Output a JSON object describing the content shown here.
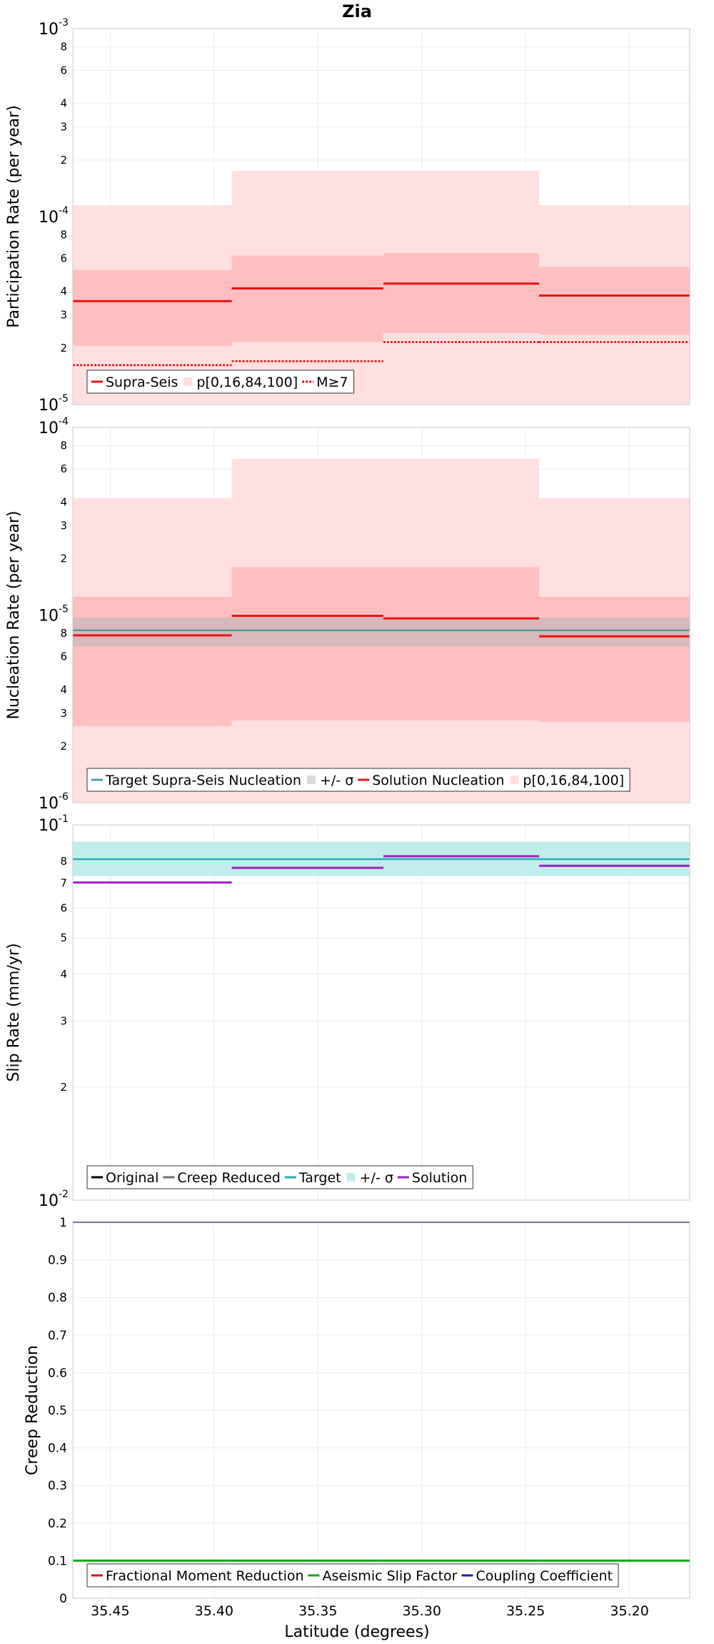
{
  "figure": {
    "title": "Zia",
    "xlabel": "Latitude (degrees)",
    "x_ticks": [
      35.45,
      35.4,
      35.35,
      35.3,
      35.25,
      35.2
    ],
    "x_tick_labels": [
      "35.45",
      "35.40",
      "35.35",
      "35.30",
      "35.25",
      "35.20"
    ],
    "x_range": [
      35.468,
      35.171
    ],
    "x_reversed": true,
    "bins": [
      [
        35.468,
        35.3915
      ],
      [
        35.3915,
        35.3185
      ],
      [
        35.3185,
        35.2435
      ],
      [
        35.2435,
        35.171
      ]
    ],
    "colors": {
      "supra_seis": "#ee1111",
      "band_inner": "#ffbfc0",
      "band_outer": "#ffdfe0",
      "target_nucleation": "#4a8f95",
      "sigma_gray": "#b4b4b4",
      "slip_target": "#20b0b0",
      "slip_sigma": "#c2eded",
      "slip_solution": "#a020c0",
      "original": "#000000",
      "creep_reduced": "#707070",
      "fractional_moment": "#dd1111",
      "aseismic": "#11aa11",
      "coupling": "#222299"
    }
  },
  "chart_data": [
    {
      "type": "line",
      "name": "participation",
      "ylabel": "Participation Rate (per year)",
      "yscale": "log",
      "ylim": [
        1e-05,
        0.001
      ],
      "y_major_ticks": [
        {
          "base": "10",
          "exp": "-5"
        },
        {
          "base": "10",
          "exp": "-4"
        },
        {
          "base": "10",
          "exp": "-3"
        }
      ],
      "y_minor_ticks": [
        {
          "value": 2e-05,
          "label": "2"
        },
        {
          "value": 3e-05,
          "label": "3"
        },
        {
          "value": 4e-05,
          "label": "4"
        },
        {
          "value": 6e-05,
          "label": "6"
        },
        {
          "value": 8e-05,
          "label": "8"
        },
        {
          "value": 0.0002,
          "label": "2"
        },
        {
          "value": 0.0003,
          "label": "3"
        },
        {
          "value": 0.0004,
          "label": "4"
        },
        {
          "value": 0.0006,
          "label": "6"
        },
        {
          "value": 0.0008,
          "label": "8"
        }
      ],
      "supra_seis": [
        3.55e-05,
        4.15e-05,
        4.4e-05,
        3.8e-05
      ],
      "p_outer": [
        [
          1e-05,
          0.000115
        ],
        [
          1e-05,
          0.000175
        ],
        [
          1e-05,
          0.000175
        ],
        [
          1e-05,
          0.000115
        ]
      ],
      "p_inner": [
        [
          2.05e-05,
          5.2e-05
        ],
        [
          2.15e-05,
          6.2e-05
        ],
        [
          2.4e-05,
          6.4e-05
        ],
        [
          2.35e-05,
          5.4e-05
        ]
      ],
      "m7": [
        1.62e-05,
        1.7e-05,
        2.15e-05,
        2.15e-05
      ],
      "legend": [
        "Supra-Seis",
        "p[0,16,84,100]",
        "M≥7"
      ]
    },
    {
      "type": "line",
      "name": "nucleation",
      "ylabel": "Nucleation Rate (per year)",
      "yscale": "log",
      "ylim": [
        1e-06,
        0.0001
      ],
      "y_major_ticks": [
        {
          "base": "10",
          "exp": "-6"
        },
        {
          "base": "10",
          "exp": "-5"
        },
        {
          "base": "10",
          "exp": "-4"
        }
      ],
      "y_minor_ticks": [
        {
          "value": 2e-06,
          "label": "2"
        },
        {
          "value": 3e-06,
          "label": "3"
        },
        {
          "value": 4e-06,
          "label": "4"
        },
        {
          "value": 6e-06,
          "label": "6"
        },
        {
          "value": 8e-06,
          "label": "8"
        },
        {
          "value": 2e-05,
          "label": "2"
        },
        {
          "value": 3e-05,
          "label": "3"
        },
        {
          "value": 4e-05,
          "label": "4"
        },
        {
          "value": 6e-05,
          "label": "6"
        },
        {
          "value": 8e-05,
          "label": "8"
        }
      ],
      "target": 8.3e-06,
      "target_sigma": [
        6.8e-06,
        9.7e-06
      ],
      "solution": [
        7.8e-06,
        9.9e-06,
        9.6e-06,
        7.7e-06
      ],
      "p_outer": [
        [
          1e-06,
          4.2e-05
        ],
        [
          1e-06,
          6.8e-05
        ],
        [
          1e-06,
          6.8e-05
        ],
        [
          1e-06,
          4.2e-05
        ]
      ],
      "p_inner": [
        [
          2.55e-06,
          1.25e-05
        ],
        [
          2.75e-06,
          1.8e-05
        ],
        [
          2.75e-06,
          1.8e-05
        ],
        [
          2.7e-06,
          1.25e-05
        ]
      ],
      "legend": [
        "Target Supra-Seis Nucleation",
        "+/- σ",
        "Solution Nucleation",
        "p[0,16,84,100]"
      ]
    },
    {
      "type": "line",
      "name": "slip",
      "ylabel": "Slip Rate (mm/yr)",
      "yscale": "log",
      "ylim": [
        0.01,
        0.1
      ],
      "y_major_ticks": [
        {
          "base": "10",
          "exp": "-2"
        },
        {
          "base": "10",
          "exp": "-1"
        }
      ],
      "y_minor_ticks": [
        {
          "value": 0.02,
          "label": "2"
        },
        {
          "value": 0.03,
          "label": "3"
        },
        {
          "value": 0.04,
          "label": "4"
        },
        {
          "value": 0.05,
          "label": "5"
        },
        {
          "value": 0.06,
          "label": "6"
        },
        {
          "value": 0.07,
          "label": "7"
        },
        {
          "value": 0.08,
          "label": "8"
        },
        {
          "value": 0.09,
          "label": ""
        }
      ],
      "target": 0.081,
      "target_sigma": [
        0.073,
        0.09
      ],
      "solution": [
        0.0702,
        0.0768,
        0.0825,
        0.0778
      ],
      "legend": [
        "Original",
        "Creep Reduced",
        "Target",
        "+/- σ",
        "Solution"
      ]
    },
    {
      "type": "line",
      "name": "creep",
      "ylabel": "Creep Reduction",
      "yscale": "linear",
      "ylim": [
        0,
        1
      ],
      "y_ticks": [
        0,
        0.1,
        0.2,
        0.3,
        0.4,
        0.5,
        0.6,
        0.7,
        0.8,
        0.9,
        1
      ],
      "y_tick_labels": [
        "0",
        "0.1",
        "0.2",
        "0.3",
        "0.4",
        "0.5",
        "0.6",
        "0.7",
        "0.8",
        "0.9",
        "1"
      ],
      "fractional_moment_reduction": [
        0,
        0,
        0,
        0
      ],
      "aseismic_slip_factor": [
        0.1,
        0.1,
        0.1,
        0.1
      ],
      "coupling_coefficient": [
        1,
        1,
        1,
        1
      ],
      "legend": [
        "Fractional Moment Reduction",
        "Aseismic Slip Factor",
        "Coupling Coefficient"
      ]
    }
  ]
}
